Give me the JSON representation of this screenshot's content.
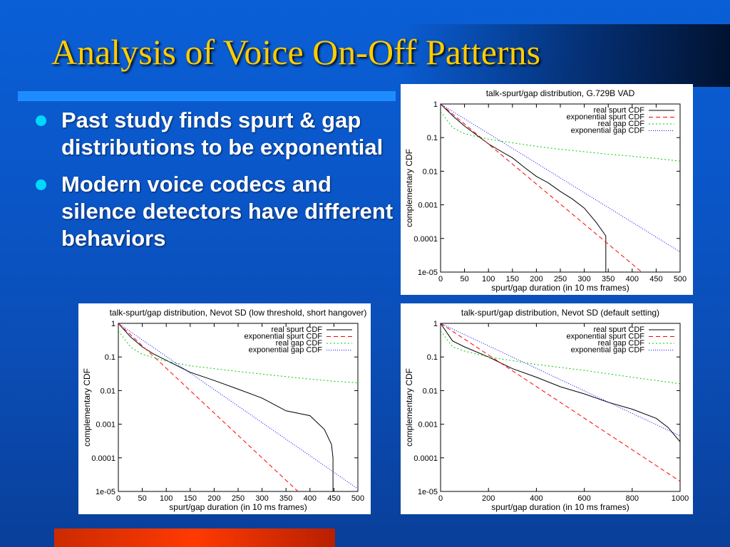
{
  "slide": {
    "title": "Analysis of Voice On-Off Patterns",
    "bullets": [
      "Past study finds spurt & gap distributions to be exponential",
      "Modern voice codecs and silence detectors have different behaviors"
    ],
    "colors": {
      "title": "#ffcc00",
      "bullet_dot": "#00d8ff",
      "rule": "#1e8cff",
      "bottom_bar": "#ff3a00"
    }
  },
  "chart_data": [
    {
      "type": "line",
      "title": "talk-spurt/gap distribution, G.729B VAD",
      "xlabel": "spurt/gap duration (in 10 ms frames)",
      "ylabel": "complementary CDF",
      "xlim": [
        0,
        500
      ],
      "ylim": [
        1e-05,
        1
      ],
      "yscale": "log",
      "x_ticks": [
        "0",
        "50",
        "100",
        "150",
        "200",
        "250",
        "300",
        "350",
        "400",
        "450",
        "500"
      ],
      "y_ticks": [
        "1",
        "0.1",
        "0.01",
        "0.001",
        "0.0001",
        "1e-05"
      ],
      "legend_position": "top-right",
      "series": [
        {
          "name": "real spurt CDF",
          "color": "#000000",
          "dash": "",
          "x": [
            0,
            25,
            50,
            75,
            100,
            125,
            150,
            175,
            200,
            225,
            250,
            275,
            300,
            325,
            340,
            345,
            345
          ],
          "y": [
            1,
            0.45,
            0.22,
            0.12,
            0.065,
            0.04,
            0.025,
            0.013,
            0.007,
            0.0045,
            0.0025,
            0.0015,
            0.0008,
            0.0003,
            0.00015,
            0.00012,
            1e-05
          ]
        },
        {
          "name": "exponential spurt CDF",
          "color": "#ff0000",
          "dash": "6,4",
          "x": [
            0,
            420
          ],
          "y": [
            1,
            1e-05
          ]
        },
        {
          "name": "real gap CDF",
          "color": "#00cc00",
          "dash": "2,3",
          "x": [
            0,
            25,
            50,
            100,
            150,
            200,
            250,
            300,
            350,
            400,
            450,
            500
          ],
          "y": [
            0.6,
            0.2,
            0.13,
            0.09,
            0.07,
            0.055,
            0.045,
            0.038,
            0.032,
            0.028,
            0.024,
            0.02
          ]
        },
        {
          "name": "exponential gap CDF",
          "color": "#0000ff",
          "dash": "1,2",
          "x": [
            0,
            500
          ],
          "y": [
            1,
            4e-05
          ]
        }
      ]
    },
    {
      "type": "line",
      "title": "talk-spurt/gap distribution, Nevot SD (low threshold, short hangover)",
      "xlabel": "spurt/gap duration (in 10 ms frames)",
      "ylabel": "complementary CDF",
      "xlim": [
        0,
        500
      ],
      "ylim": [
        1e-05,
        1
      ],
      "yscale": "log",
      "x_ticks": [
        "0",
        "50",
        "100",
        "150",
        "200",
        "250",
        "300",
        "350",
        "400",
        "450",
        "500"
      ],
      "y_ticks": [
        "1",
        "0.1",
        "0.01",
        "0.001",
        "0.0001",
        "1e-05"
      ],
      "legend_position": "top-right",
      "series": [
        {
          "name": "real spurt CDF",
          "color": "#000000",
          "dash": "",
          "x": [
            0,
            25,
            50,
            75,
            100,
            150,
            200,
            250,
            300,
            350,
            400,
            430,
            445,
            448,
            448
          ],
          "y": [
            1,
            0.4,
            0.2,
            0.12,
            0.08,
            0.035,
            0.02,
            0.011,
            0.006,
            0.0025,
            0.0018,
            0.0007,
            0.00025,
            0.0001,
            1e-05
          ]
        },
        {
          "name": "exponential spurt CDF",
          "color": "#ff0000",
          "dash": "6,4",
          "x": [
            0,
            375
          ],
          "y": [
            1,
            1e-05
          ]
        },
        {
          "name": "real gap CDF",
          "color": "#00cc00",
          "dash": "2,3",
          "x": [
            0,
            25,
            50,
            100,
            150,
            200,
            250,
            300,
            350,
            400,
            450,
            500
          ],
          "y": [
            0.6,
            0.2,
            0.12,
            0.075,
            0.055,
            0.045,
            0.037,
            0.031,
            0.026,
            0.022,
            0.019,
            0.017
          ]
        },
        {
          "name": "exponential gap CDF",
          "color": "#0000ff",
          "dash": "1,2",
          "x": [
            0,
            500
          ],
          "y": [
            1,
            1.2e-05
          ]
        }
      ]
    },
    {
      "type": "line",
      "title": "talk-spurt/gap distribution, Nevot SD (default setting)",
      "xlabel": "spurt/gap duration (in 10 ms frames)",
      "ylabel": "complementary CDF",
      "xlim": [
        0,
        1000
      ],
      "ylim": [
        1e-05,
        1
      ],
      "yscale": "log",
      "x_ticks": [
        "0",
        "200",
        "400",
        "600",
        "800",
        "1000"
      ],
      "y_ticks": [
        "1",
        "0.1",
        "0.01",
        "0.001",
        "0.0001",
        "1e-05"
      ],
      "legend_position": "top-right",
      "series": [
        {
          "name": "real spurt CDF",
          "color": "#000000",
          "dash": "",
          "x": [
            0,
            50,
            100,
            200,
            300,
            400,
            500,
            600,
            700,
            800,
            900,
            950,
            1000
          ],
          "y": [
            1,
            0.3,
            0.2,
            0.1,
            0.045,
            0.025,
            0.013,
            0.008,
            0.0045,
            0.0028,
            0.0015,
            0.0008,
            0.0003
          ]
        },
        {
          "name": "exponential spurt CDF",
          "color": "#ff0000",
          "dash": "6,4",
          "x": [
            0,
            1000
          ],
          "y": [
            1,
            2e-05
          ]
        },
        {
          "name": "real gap CDF",
          "color": "#00cc00",
          "dash": "2,3",
          "x": [
            0,
            50,
            100,
            200,
            400,
            600,
            800,
            1000
          ],
          "y": [
            0.6,
            0.2,
            0.15,
            0.1,
            0.06,
            0.04,
            0.025,
            0.016
          ]
        },
        {
          "name": "exponential gap CDF",
          "color": "#0000ff",
          "dash": "1,2",
          "x": [
            0,
            1000
          ],
          "y": [
            1,
            0.00045
          ]
        }
      ]
    }
  ]
}
